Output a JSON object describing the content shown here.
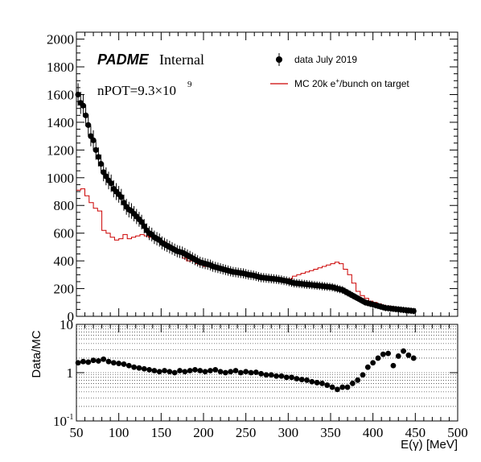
{
  "chart_data": [
    {
      "type": "line",
      "panel": "main",
      "label_main": "PADME",
      "label_suffix": "Internal",
      "npot_prefix": "nPOT=9.3×10",
      "npot_exp": "9",
      "xlim": [
        50,
        500
      ],
      "ylim": [
        0,
        2050
      ],
      "y_ticks": [
        "0",
        "200",
        "400",
        "600",
        "800",
        "1000",
        "1200",
        "1400",
        "1600",
        "1800",
        "2000"
      ],
      "legend_position": "top-right",
      "series": [
        {
          "name": "data July 2019",
          "style": "markers",
          "color": "#000000",
          "x": [
            52,
            55,
            58,
            61,
            64,
            67,
            70,
            73,
            76,
            79,
            82,
            85,
            88,
            91,
            94,
            97,
            100,
            103,
            106,
            109,
            112,
            115,
            118,
            121,
            124,
            127,
            130,
            133,
            136,
            139,
            142,
            145,
            148,
            151,
            154,
            157,
            160,
            163,
            166,
            169,
            172,
            175,
            178,
            181,
            184,
            187,
            190,
            193,
            196,
            199,
            202,
            205,
            208,
            211,
            214,
            217,
            220,
            223,
            226,
            229,
            232,
            235,
            238,
            241,
            244,
            247,
            250,
            253,
            256,
            259,
            262,
            265,
            268,
            271,
            274,
            277,
            280,
            283,
            286,
            289,
            292,
            295,
            298,
            301,
            304,
            307,
            310,
            313,
            316,
            319,
            322,
            325,
            328,
            331,
            334,
            337,
            340,
            343,
            346,
            349,
            352,
            355,
            358,
            361,
            364,
            367,
            370,
            373,
            376,
            379,
            382,
            385,
            388,
            391,
            394,
            397,
            400,
            403,
            406,
            409,
            412,
            415,
            418,
            421,
            424,
            427,
            430,
            433,
            436,
            439,
            442,
            445,
            448
          ],
          "y": [
            1600,
            1540,
            1520,
            1450,
            1380,
            1300,
            1270,
            1200,
            1150,
            1100,
            1040,
            1010,
            980,
            960,
            920,
            900,
            880,
            860,
            820,
            790,
            770,
            760,
            740,
            720,
            700,
            680,
            650,
            620,
            600,
            590,
            570,
            560,
            550,
            530,
            520,
            510,
            500,
            490,
            480,
            470,
            465,
            460,
            450,
            440,
            430,
            420,
            410,
            400,
            390,
            385,
            380,
            375,
            370,
            360,
            355,
            350,
            345,
            340,
            335,
            330,
            325,
            320,
            318,
            315,
            312,
            310,
            305,
            300,
            298,
            295,
            290,
            285,
            280,
            278,
            276,
            274,
            272,
            270,
            268,
            265,
            262,
            258,
            255,
            250,
            245,
            240,
            238,
            236,
            234,
            232,
            230,
            228,
            226,
            224,
            222,
            220,
            218,
            216,
            214,
            212,
            210,
            205,
            200,
            195,
            190,
            180,
            170,
            160,
            150,
            140,
            130,
            120,
            110,
            100,
            95,
            90,
            85,
            80,
            75,
            70,
            65,
            60,
            58,
            56,
            54,
            52,
            50,
            48,
            46,
            44,
            42,
            40,
            38
          ]
        },
        {
          "name": "MC 20k e⁺/bunch on target",
          "style": "step",
          "color": "#cc0000",
          "x": [
            50,
            55,
            60,
            65,
            70,
            75,
            80,
            85,
            90,
            95,
            100,
            105,
            110,
            115,
            120,
            125,
            130,
            135,
            140,
            145,
            150,
            155,
            160,
            165,
            170,
            175,
            180,
            185,
            190,
            195,
            200,
            205,
            210,
            215,
            220,
            225,
            230,
            235,
            240,
            245,
            250,
            255,
            260,
            265,
            270,
            275,
            280,
            285,
            290,
            295,
            300,
            305,
            310,
            315,
            320,
            325,
            330,
            335,
            340,
            345,
            350,
            355,
            360,
            365,
            370,
            375,
            380,
            385,
            390,
            395,
            400,
            405,
            410,
            415,
            420,
            425,
            430,
            435,
            440,
            445,
            450
          ],
          "y": [
            910,
            920,
            870,
            820,
            780,
            760,
            620,
            600,
            570,
            550,
            560,
            590,
            560,
            570,
            580,
            590,
            580,
            570,
            575,
            560,
            540,
            520,
            500,
            470,
            450,
            420,
            400,
            400,
            380,
            370,
            360,
            360,
            350,
            345,
            340,
            330,
            320,
            310,
            300,
            300,
            295,
            290,
            285,
            280,
            275,
            270,
            265,
            265,
            260,
            260,
            270,
            290,
            300,
            310,
            320,
            330,
            340,
            350,
            360,
            370,
            380,
            390,
            380,
            340,
            300,
            240,
            180,
            150,
            130,
            110,
            100,
            90,
            80,
            75,
            70,
            65,
            60,
            55,
            50,
            45,
            40
          ]
        }
      ]
    },
    {
      "type": "scatter",
      "panel": "ratio",
      "ylabel": "Data/MC",
      "xlabel": "E(γ) [MeV]",
      "yscale": "log",
      "xlim": [
        50,
        500
      ],
      "ylim": [
        0.1,
        10
      ],
      "x_ticks": [
        "50",
        "100",
        "150",
        "200",
        "250",
        "300",
        "350",
        "400",
        "450",
        "500"
      ],
      "y_tick_base": "10",
      "series": [
        {
          "name": "",
          "style": "markers",
          "color": "#000000",
          "x": [
            52,
            58,
            64,
            70,
            76,
            82,
            88,
            94,
            100,
            106,
            112,
            118,
            124,
            130,
            136,
            142,
            148,
            154,
            160,
            166,
            172,
            178,
            184,
            190,
            196,
            202,
            208,
            214,
            220,
            226,
            232,
            238,
            244,
            250,
            256,
            262,
            268,
            274,
            280,
            286,
            292,
            298,
            304,
            310,
            316,
            322,
            328,
            334,
            340,
            346,
            352,
            358,
            364,
            370,
            376,
            382,
            388,
            394,
            400,
            406,
            412,
            418,
            424,
            430,
            436,
            442,
            448
          ],
          "y": [
            1.6,
            1.7,
            1.65,
            1.8,
            1.75,
            1.9,
            1.7,
            1.6,
            1.55,
            1.5,
            1.4,
            1.3,
            1.25,
            1.2,
            1.15,
            1.1,
            1.05,
            1.1,
            1.05,
            1.0,
            1.1,
            1.05,
            1.1,
            1.15,
            1.1,
            1.05,
            1.1,
            1.15,
            1.05,
            1.0,
            1.05,
            1.1,
            1.0,
            1.05,
            1.0,
            1.02,
            0.95,
            0.9,
            0.9,
            0.85,
            0.85,
            0.8,
            0.8,
            0.75,
            0.72,
            0.7,
            0.65,
            0.62,
            0.6,
            0.55,
            0.5,
            0.45,
            0.5,
            0.5,
            0.6,
            0.7,
            0.9,
            1.3,
            1.6,
            2.0,
            2.4,
            2.5,
            1.4,
            2.2,
            2.8,
            2.3,
            2.0
          ]
        }
      ]
    }
  ],
  "legend": {
    "data_label": "data July 2019",
    "mc_label_prefix": "MC 20k e",
    "mc_label_sup": "+",
    "mc_label_suffix": "/bunch on target"
  }
}
